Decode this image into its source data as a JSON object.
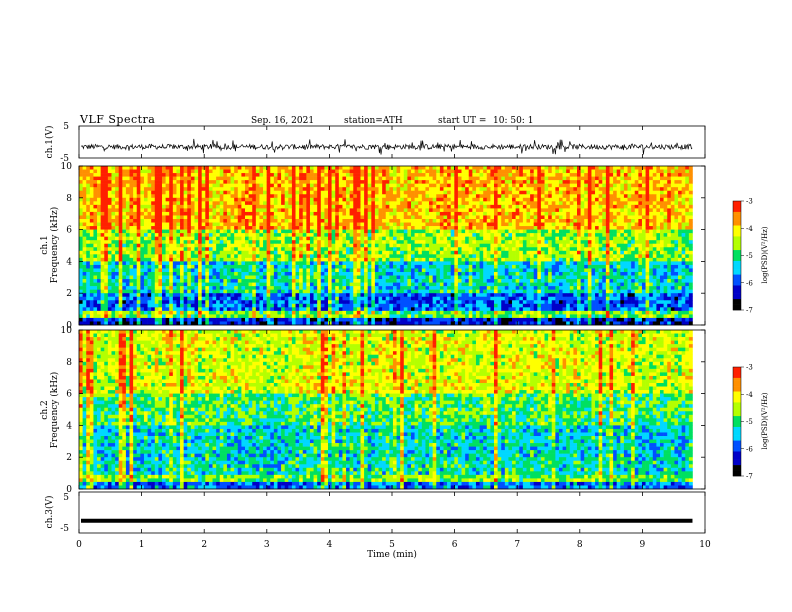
{
  "header": {
    "title": "VLF  Spectra",
    "date": "Sep. 16, 2021",
    "station": "station=ATH",
    "start_ut_label": "start  UT  =",
    "start_ut_value": "10: 50: 1"
  },
  "colors": {
    "spectrogram_scale": [
      "#000000",
      "#0000c8",
      "#0050ff",
      "#00d8ff",
      "#00e060",
      "#b4ff00",
      "#ffff00",
      "#ff9000",
      "#ff2000",
      "#ffffff"
    ],
    "waveform": "#000000"
  },
  "chart_data": [
    {
      "type": "line",
      "name": "ch1-waveform",
      "ylabel": "ch.1(V)",
      "ylim": [
        -5,
        5
      ],
      "y_tick_labels": [
        "5",
        "-5"
      ],
      "xlim": [
        0,
        10
      ],
      "description_of_trace": "noisy signal centered near -1.5 V, spikes to about +1 and -4 V",
      "baseline": -1.5
    },
    {
      "type": "heatmap",
      "name": "ch1-spectrogram",
      "ylabel_top": "ch.1",
      "ylabel": "Frequency  (kHz)",
      "ylim": [
        0,
        10
      ],
      "y_tick_labels": [
        "0",
        "2",
        "4",
        "6",
        "8",
        "10"
      ],
      "xlim": [
        0,
        10
      ],
      "colorbar": {
        "label": "log(PSD)(V²/Hz)",
        "range": [
          -7,
          -3
        ],
        "tick_labels": [
          "-3",
          "-4",
          "-5",
          "-6",
          "-7"
        ]
      },
      "bands_log_psd": [
        {
          "from_khz": 0,
          "to_khz": 0.5,
          "level": -6.3
        },
        {
          "from_khz": 0.5,
          "to_khz": 1.0,
          "level": -4.8
        },
        {
          "from_khz": 1.0,
          "to_khz": 2.0,
          "level": -5.9
        },
        {
          "from_khz": 2.0,
          "to_khz": 4.0,
          "level": -5.3
        },
        {
          "from_khz": 4.0,
          "to_khz": 6.0,
          "level": -4.6
        },
        {
          "from_khz": 6.0,
          "to_khz": 10.0,
          "level": -3.9
        }
      ]
    },
    {
      "type": "heatmap",
      "name": "ch2-spectrogram",
      "ylabel_top": "ch.2",
      "ylabel": "Frequency  (kHz)",
      "ylim": [
        0,
        10
      ],
      "y_tick_labels": [
        "0",
        "2",
        "4",
        "6",
        "8",
        "10"
      ],
      "xlim": [
        0,
        10
      ],
      "colorbar": {
        "label": "log(PSD)(V²/Hz)",
        "range": [
          -7,
          -3
        ],
        "tick_labels": [
          "-3",
          "-4",
          "-5",
          "-6",
          "-7"
        ]
      },
      "bands_log_psd": [
        {
          "from_khz": 0,
          "to_khz": 0.5,
          "level": -5.8
        },
        {
          "from_khz": 0.5,
          "to_khz": 1.0,
          "level": -4.7
        },
        {
          "from_khz": 1.0,
          "to_khz": 2.0,
          "level": -5.2
        },
        {
          "from_khz": 2.0,
          "to_khz": 4.0,
          "level": -5.3
        },
        {
          "from_khz": 4.0,
          "to_khz": 6.0,
          "level": -4.9
        },
        {
          "from_khz": 6.0,
          "to_khz": 10.0,
          "level": -4.3
        }
      ]
    },
    {
      "type": "line",
      "name": "ch3-waveform",
      "ylabel": "ch.3(V)",
      "ylim": [
        -5,
        5
      ],
      "y_tick_labels": [
        "5",
        "-5"
      ],
      "xlim": [
        0,
        10
      ],
      "xlabel": "Time  (min)",
      "x_tick_labels": [
        "0",
        "1",
        "2",
        "3",
        "4",
        "5",
        "6",
        "7",
        "8",
        "9",
        "10"
      ],
      "baseline": -2.0,
      "data_end_min": 9.8
    }
  ]
}
